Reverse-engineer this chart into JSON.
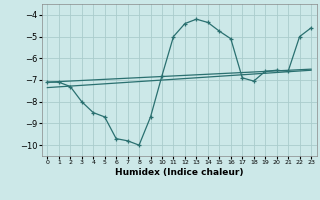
{
  "title": "",
  "xlabel": "Humidex (Indice chaleur)",
  "background_color": "#cce8e8",
  "grid_color": "#aacccc",
  "line_color": "#2a7070",
  "xlim": [
    -0.5,
    23.5
  ],
  "ylim": [
    -10.5,
    -3.5
  ],
  "yticks": [
    -10,
    -9,
    -8,
    -7,
    -6,
    -5,
    -4
  ],
  "xticks": [
    0,
    1,
    2,
    3,
    4,
    5,
    6,
    7,
    8,
    9,
    10,
    11,
    12,
    13,
    14,
    15,
    16,
    17,
    18,
    19,
    20,
    21,
    22,
    23
  ],
  "line1_x": [
    0,
    1,
    2,
    3,
    4,
    5,
    6,
    7,
    8,
    9,
    10,
    11,
    12,
    13,
    14,
    15,
    16,
    17,
    18,
    19,
    20,
    21,
    22,
    23
  ],
  "line1_y": [
    -7.1,
    -7.1,
    -7.3,
    -8.0,
    -8.5,
    -8.7,
    -9.7,
    -9.8,
    -10.0,
    -8.7,
    -6.8,
    -5.0,
    -4.4,
    -4.2,
    -4.35,
    -4.75,
    -5.1,
    -6.9,
    -7.05,
    -6.6,
    -6.55,
    -6.6,
    -5.0,
    -4.6
  ],
  "line2_x": [
    0,
    23
  ],
  "line2_y": [
    -7.1,
    -6.5
  ],
  "line3_x": [
    0,
    23
  ],
  "line3_y": [
    -7.35,
    -6.55
  ]
}
